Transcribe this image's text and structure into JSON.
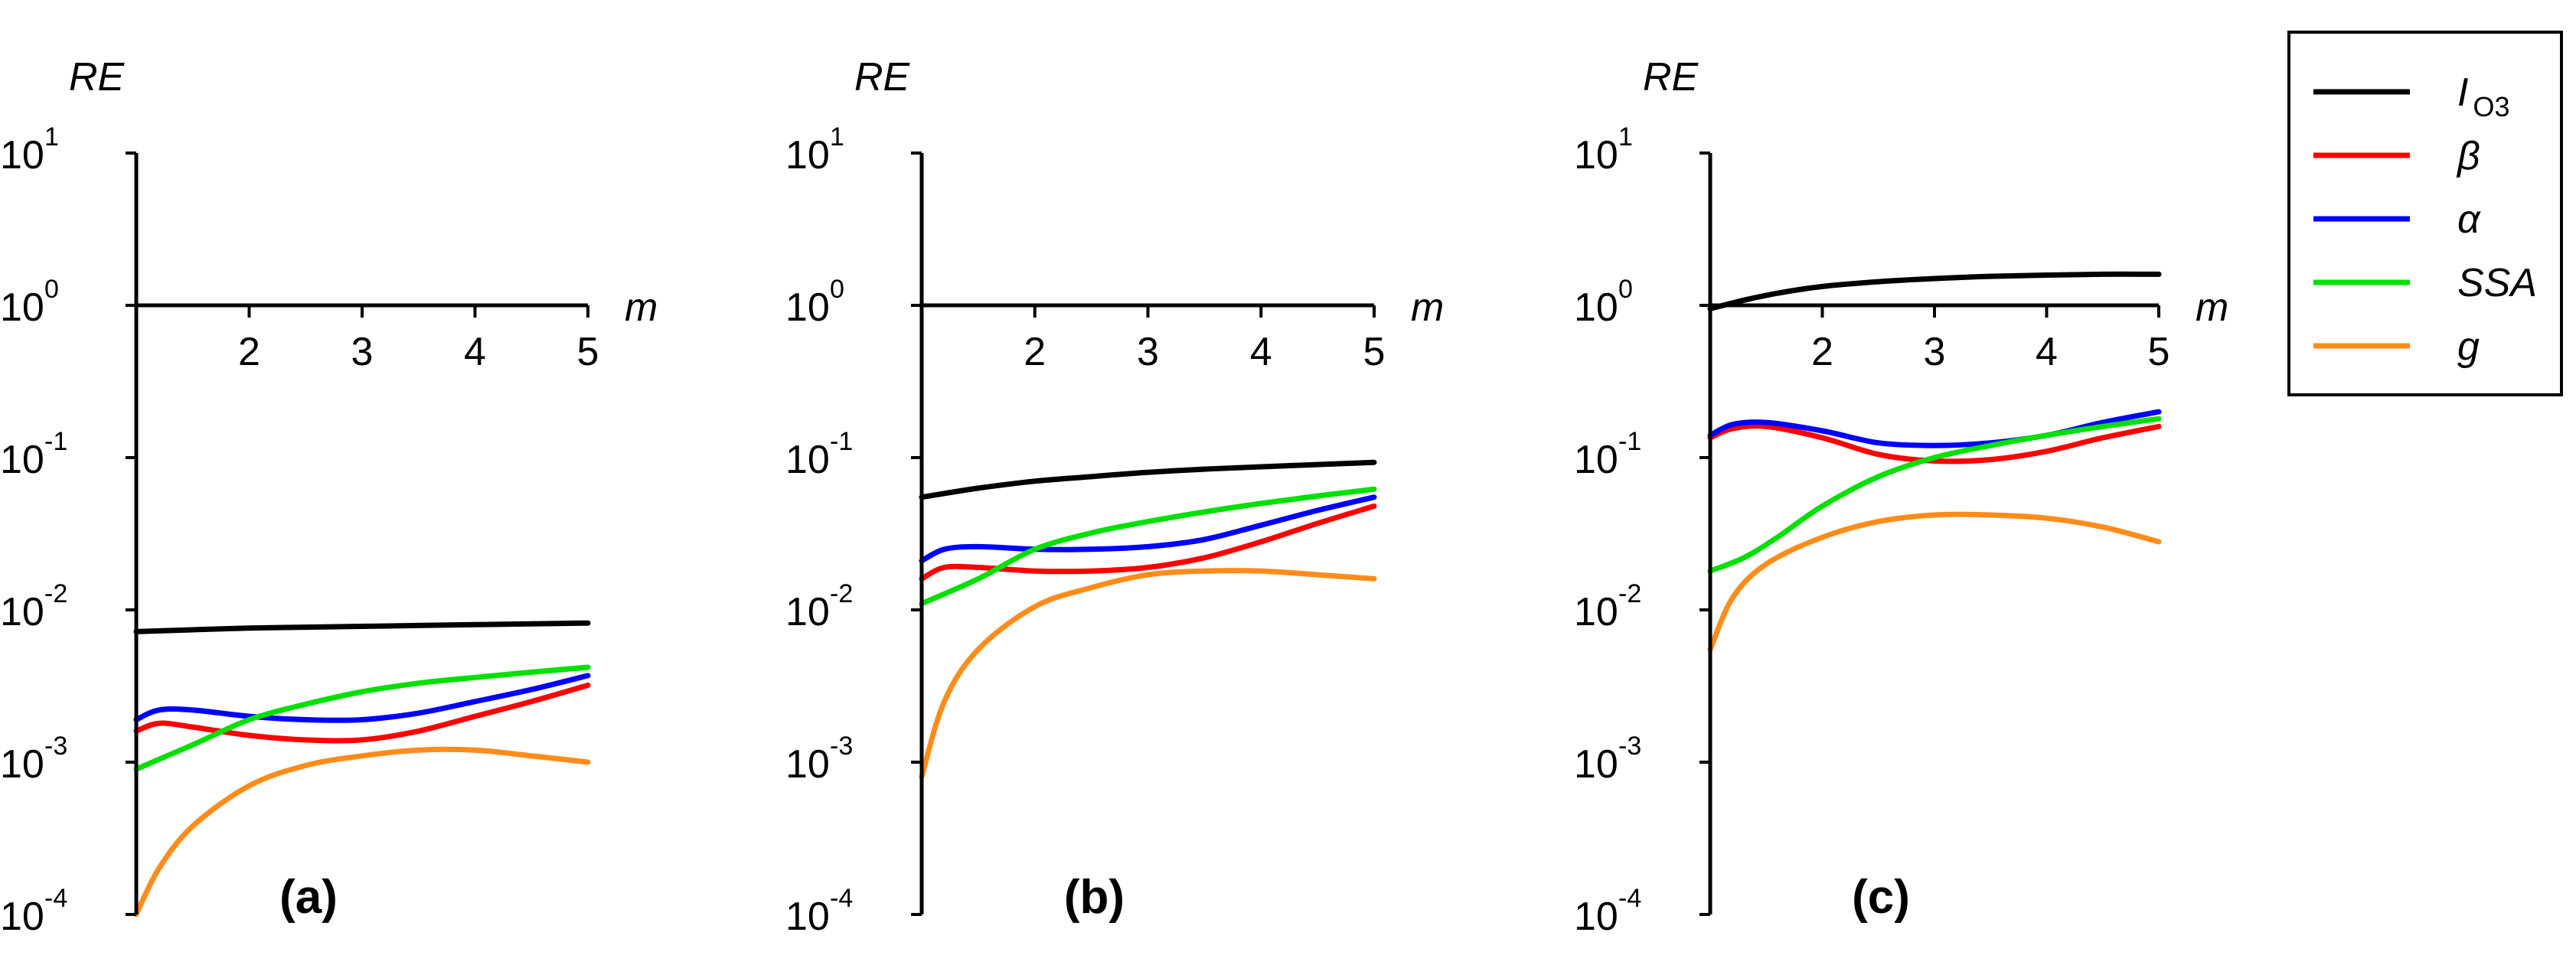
{
  "chart_data": [
    {
      "type": "line",
      "panel_label": "(a)",
      "ylabel": "RE",
      "xlabel": "m",
      "x_ticks": [
        "2",
        "3",
        "4",
        "5"
      ],
      "y_ticks": [
        {
          "base": "10",
          "exp": "1"
        },
        {
          "base": "10",
          "exp": "0"
        },
        {
          "base": "10",
          "exp": "-1"
        },
        {
          "base": "10",
          "exp": "-2"
        },
        {
          "base": "10",
          "exp": "-3"
        },
        {
          "base": "10",
          "exp": "-4"
        }
      ],
      "xlim": [
        1,
        5
      ],
      "ylim_log10": [
        -4,
        1
      ],
      "yscale": "log",
      "series": [
        {
          "name": "I_O3",
          "color": "#000000",
          "x": [
            1,
            1.5,
            2,
            2.5,
            3,
            3.5,
            4,
            4.5,
            5
          ],
          "y": [
            0.0072,
            0.0074,
            0.0076,
            0.0077,
            0.0078,
            0.0079,
            0.008,
            0.0081,
            0.0082
          ]
        },
        {
          "name": "β",
          "color": "#ff0000",
          "x": [
            1,
            1.2,
            1.5,
            2,
            2.5,
            3,
            3.5,
            4,
            4.5,
            5
          ],
          "y": [
            0.0016,
            0.0018,
            0.0017,
            0.0015,
            0.0014,
            0.0014,
            0.0016,
            0.002,
            0.0025,
            0.0032
          ]
        },
        {
          "name": "α",
          "color": "#0000ff",
          "x": [
            1,
            1.2,
            1.5,
            2,
            2.5,
            3,
            3.5,
            4,
            4.5,
            5
          ],
          "y": [
            0.0019,
            0.0022,
            0.0022,
            0.002,
            0.0019,
            0.0019,
            0.0021,
            0.0025,
            0.003,
            0.0037
          ]
        },
        {
          "name": "SSA",
          "color": "#00e000",
          "x": [
            1,
            1.5,
            2,
            2.5,
            3,
            3.5,
            4,
            4.5,
            5
          ],
          "y": [
            0.0009,
            0.0013,
            0.0019,
            0.0024,
            0.0029,
            0.0033,
            0.0036,
            0.0039,
            0.0042
          ]
        },
        {
          "name": "g",
          "color": "#ff8c1a",
          "x": [
            1,
            1.2,
            1.5,
            2,
            2.5,
            3,
            3.5,
            4,
            4.5,
            5
          ],
          "y": [
            0.0001,
            0.0002,
            0.00038,
            0.0007,
            0.00095,
            0.0011,
            0.0012,
            0.0012,
            0.0011,
            0.001
          ]
        }
      ]
    },
    {
      "type": "line",
      "panel_label": "(b)",
      "ylabel": "RE",
      "xlabel": "m",
      "x_ticks": [
        "2",
        "3",
        "4",
        "5"
      ],
      "y_ticks": [
        {
          "base": "10",
          "exp": "1"
        },
        {
          "base": "10",
          "exp": "0"
        },
        {
          "base": "10",
          "exp": "-1"
        },
        {
          "base": "10",
          "exp": "-2"
        },
        {
          "base": "10",
          "exp": "-3"
        },
        {
          "base": "10",
          "exp": "-4"
        }
      ],
      "xlim": [
        1,
        5
      ],
      "ylim_log10": [
        -4,
        1
      ],
      "yscale": "log",
      "series": [
        {
          "name": "I_O3",
          "color": "#000000",
          "x": [
            1,
            1.5,
            2,
            2.5,
            3,
            3.5,
            4,
            4.5,
            5
          ],
          "y": [
            0.055,
            0.063,
            0.07,
            0.075,
            0.08,
            0.084,
            0.087,
            0.09,
            0.093
          ]
        },
        {
          "name": "β",
          "color": "#ff0000",
          "x": [
            1,
            1.2,
            1.5,
            2,
            2.5,
            3,
            3.5,
            4,
            4.5,
            5
          ],
          "y": [
            0.016,
            0.019,
            0.019,
            0.018,
            0.018,
            0.019,
            0.022,
            0.028,
            0.037,
            0.048
          ]
        },
        {
          "name": "α",
          "color": "#0000ff",
          "x": [
            1,
            1.2,
            1.5,
            2,
            2.5,
            3,
            3.5,
            4,
            4.5,
            5
          ],
          "y": [
            0.021,
            0.025,
            0.026,
            0.025,
            0.025,
            0.026,
            0.029,
            0.036,
            0.045,
            0.055
          ]
        },
        {
          "name": "SSA",
          "color": "#00e000",
          "x": [
            1,
            1.5,
            2,
            2.5,
            3,
            3.5,
            4,
            4.5,
            5
          ],
          "y": [
            0.011,
            0.016,
            0.025,
            0.032,
            0.038,
            0.044,
            0.05,
            0.056,
            0.062
          ]
        },
        {
          "name": "g",
          "color": "#ff8c1a",
          "x": [
            1,
            1.2,
            1.5,
            2,
            2.5,
            3,
            3.5,
            4,
            4.5,
            5
          ],
          "y": [
            0.0008,
            0.0025,
            0.0055,
            0.0105,
            0.014,
            0.017,
            0.018,
            0.018,
            0.017,
            0.016
          ]
        }
      ]
    },
    {
      "type": "line",
      "panel_label": "(c)",
      "ylabel": "RE",
      "xlabel": "m",
      "x_ticks": [
        "2",
        "3",
        "4",
        "5"
      ],
      "y_ticks": [
        {
          "base": "10",
          "exp": "1"
        },
        {
          "base": "10",
          "exp": "0"
        },
        {
          "base": "10",
          "exp": "-1"
        },
        {
          "base": "10",
          "exp": "-2"
        },
        {
          "base": "10",
          "exp": "-3"
        },
        {
          "base": "10",
          "exp": "-4"
        }
      ],
      "xlim": [
        1,
        5
      ],
      "ylim_log10": [
        -4,
        1
      ],
      "yscale": "log",
      "series": [
        {
          "name": "I_O3",
          "color": "#000000",
          "x": [
            1,
            1.3,
            1.6,
            2,
            2.5,
            3,
            3.5,
            4,
            4.5,
            5
          ],
          "y": [
            0.95,
            1.08,
            1.2,
            1.33,
            1.43,
            1.5,
            1.55,
            1.58,
            1.6,
            1.6
          ]
        },
        {
          "name": "β",
          "color": "#ff0000",
          "x": [
            1,
            1.2,
            1.5,
            2,
            2.5,
            3,
            3.5,
            4,
            4.5,
            5
          ],
          "y": [
            0.135,
            0.155,
            0.16,
            0.135,
            0.105,
            0.095,
            0.097,
            0.11,
            0.135,
            0.16
          ]
        },
        {
          "name": "α",
          "color": "#0000ff",
          "x": [
            1,
            1.2,
            1.5,
            2,
            2.5,
            3,
            3.5,
            4,
            4.5,
            5
          ],
          "y": [
            0.14,
            0.165,
            0.17,
            0.15,
            0.125,
            0.12,
            0.125,
            0.14,
            0.17,
            0.2
          ]
        },
        {
          "name": "SSA",
          "color": "#00e000",
          "x": [
            1,
            1.3,
            1.6,
            2,
            2.5,
            3,
            3.5,
            4,
            4.5,
            5
          ],
          "y": [
            0.018,
            0.022,
            0.03,
            0.048,
            0.075,
            0.1,
            0.12,
            0.14,
            0.16,
            0.18
          ]
        },
        {
          "name": "g",
          "color": "#ff8c1a",
          "x": [
            1,
            1.2,
            1.5,
            2,
            2.5,
            3,
            3.5,
            4,
            4.5,
            5
          ],
          "y": [
            0.0055,
            0.012,
            0.02,
            0.03,
            0.038,
            0.042,
            0.042,
            0.04,
            0.035,
            0.028
          ]
        }
      ]
    }
  ],
  "legend": {
    "placement": "top-right",
    "entries": [
      {
        "label": "I",
        "subscript": "O3",
        "italic": true,
        "color": "#000000"
      },
      {
        "label": "β",
        "subscript": "",
        "italic": true,
        "color": "#ff0000"
      },
      {
        "label": "α",
        "subscript": "",
        "italic": true,
        "color": "#0000ff"
      },
      {
        "label": "SSA",
        "subscript": "",
        "italic": true,
        "color": "#00e000"
      },
      {
        "label": "g",
        "subscript": "",
        "italic": true,
        "color": "#ff8c1a"
      }
    ]
  }
}
